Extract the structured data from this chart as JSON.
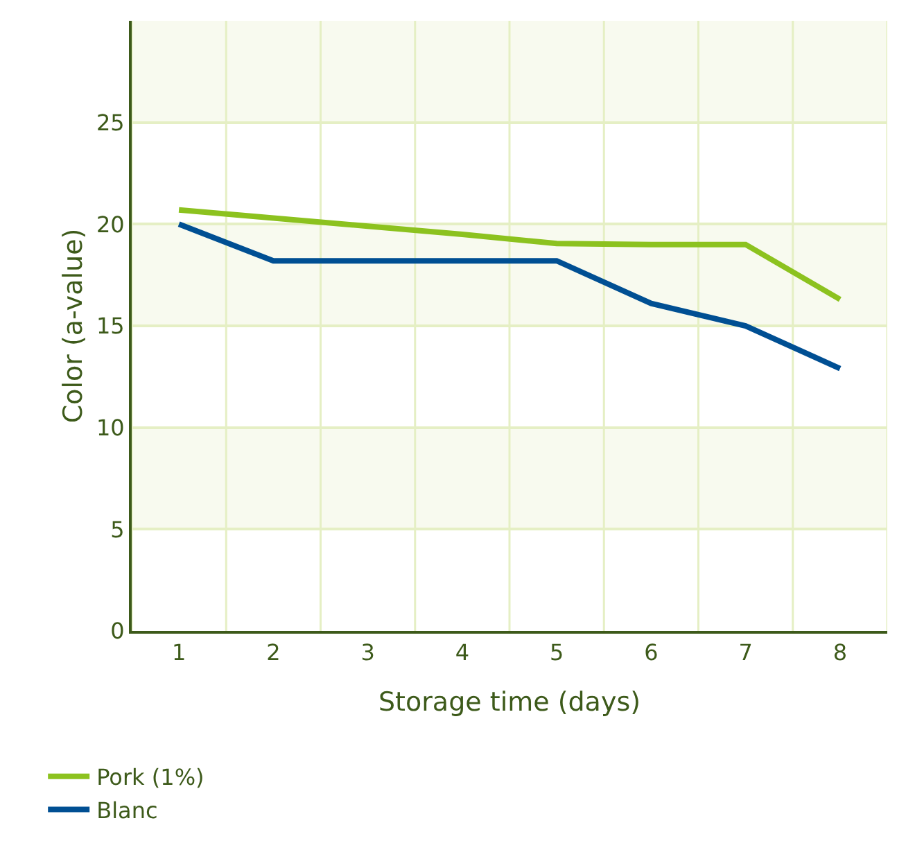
{
  "chart_data": {
    "type": "line",
    "xlabel": "Storage time (days)",
    "ylabel": "Color (a-value)",
    "categories": [
      "1",
      "2",
      "3",
      "4",
      "5",
      "6",
      "7",
      "8"
    ],
    "series": [
      {
        "name": "Pork (1%)",
        "color": "#8cc21f",
        "values": [
          20.7,
          20.3,
          19.9,
          19.5,
          19.05,
          19.0,
          19.0,
          16.3
        ]
      },
      {
        "name": "Blanc",
        "color": "#004f93",
        "values": [
          20.0,
          18.2,
          18.2,
          18.2,
          18.2,
          16.1,
          15.0,
          12.9
        ]
      }
    ],
    "ylim": [
      0,
      30
    ],
    "yticks": [
      0,
      5,
      10,
      15,
      20,
      25
    ],
    "grid": true,
    "legend": "bottom",
    "marker": "none",
    "line_style": "solid",
    "bands": [
      {
        "axis": "y",
        "from": 5,
        "to": 10,
        "color": "#f8faef"
      },
      {
        "axis": "y",
        "from": 15,
        "to": 20,
        "color": "#f8faef"
      },
      {
        "axis": "y",
        "from": 25,
        "to": 30,
        "color": "#f8faef"
      }
    ]
  }
}
